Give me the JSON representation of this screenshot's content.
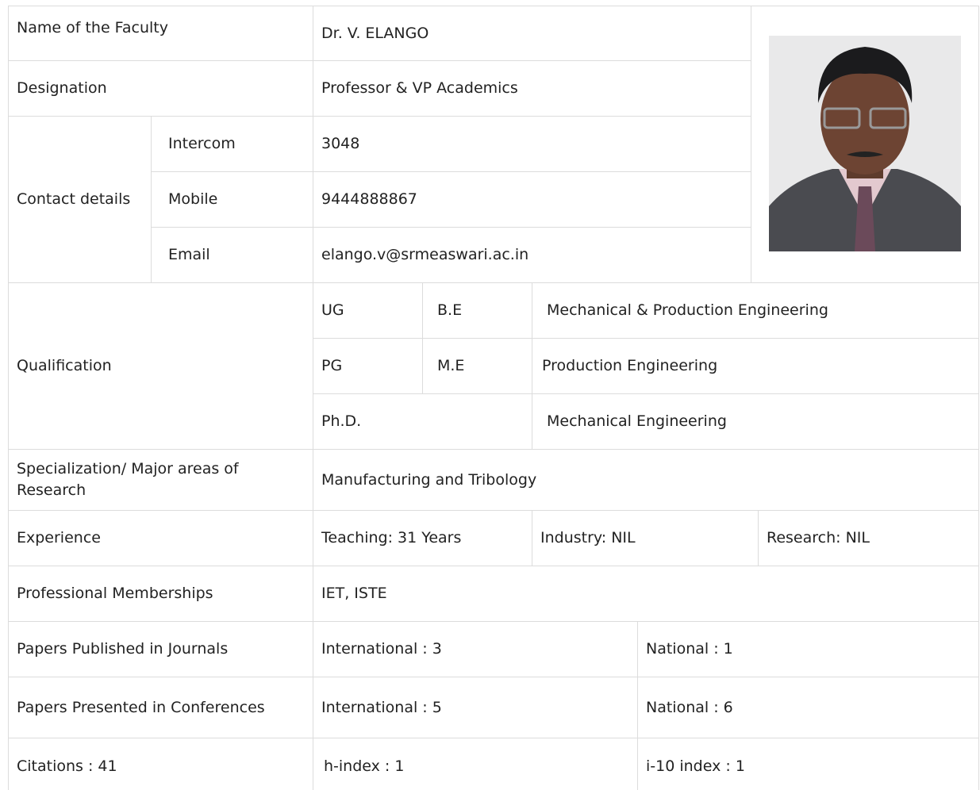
{
  "profile": {
    "name": {
      "label": "Name of the Faculty",
      "value": "Dr. V. ELANGO"
    },
    "designation": {
      "label": "Designation",
      "value": "Professor & VP Academics"
    },
    "contact": {
      "label": "Contact details",
      "items": [
        {
          "label": "Intercom",
          "value": "3048"
        },
        {
          "label": "Mobile",
          "value": "9444888867"
        },
        {
          "label": "Email",
          "value": "elango.v@srmeaswari.ac.in"
        }
      ]
    },
    "qualification": {
      "label": "Qualification",
      "items": [
        {
          "level": "UG",
          "degree": "B.E",
          "field": "Mechanical & Production Engineering"
        },
        {
          "level": "PG",
          "degree": "M.E",
          "field": "Production Engineering"
        },
        {
          "level": "Ph.D.",
          "field": "Mechanical Engineering"
        }
      ]
    },
    "specialization": {
      "label": "Specialization/ Major areas of Research",
      "value": "Manufacturing and Tribology"
    },
    "experience": {
      "label": "Experience",
      "items": [
        "Teaching: 31 Years",
        "Industry: NIL",
        "Research: NIL"
      ]
    },
    "memberships": {
      "label": "Professional Memberships",
      "value": "IET, ISTE"
    },
    "journals": {
      "label": "Papers Published in Journals",
      "items": [
        "International : 3",
        "National : 1"
      ]
    },
    "conferences": {
      "label": "Papers Presented in Conferences",
      "items": [
        "International : 5",
        "National : 6"
      ]
    },
    "indices": {
      "items": [
        "Citations : 41",
        "h-index : 1",
        "i-10 index : 1"
      ]
    }
  }
}
